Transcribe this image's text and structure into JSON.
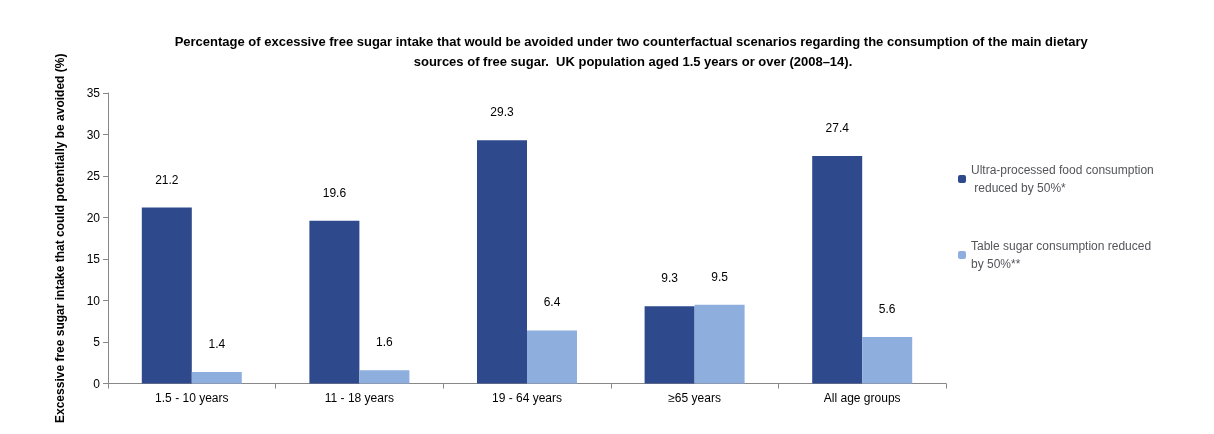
{
  "chart_data": {
    "type": "bar",
    "title": "Percentage of excessive free sugar intake that would be avoided under two counterfactual scenarios regarding the consumption of the main dietary sources of free sugar.  UK population aged 1.5 years or over (2008–14).",
    "ylabel": "Excessive free sugar intake that could potentially be avoided (%)",
    "categories": [
      "1.5 - 10 years",
      "11 - 18 years",
      "19 - 64 years",
      "≥65 years",
      "All age groups"
    ],
    "series": [
      {
        "name": "Ultra-processed food consumption reduced by 50%*",
        "color": "#2e4a8c",
        "values": [
          21.2,
          19.6,
          29.3,
          9.3,
          27.4
        ]
      },
      {
        "name": "Table sugar consumption reduced by 50%**",
        "color": "#8eaede",
        "values": [
          1.4,
          1.6,
          6.4,
          9.5,
          5.6
        ]
      }
    ],
    "ylim": [
      0,
      35
    ],
    "yticks": [
      0,
      5,
      10,
      15,
      20,
      25,
      30,
      35
    ],
    "grid": false,
    "legend": "right",
    "data_labels": true
  }
}
